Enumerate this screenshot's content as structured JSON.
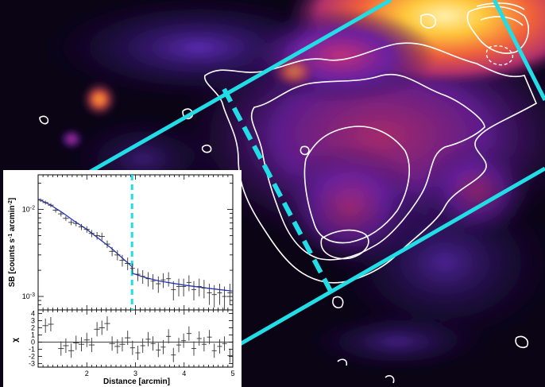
{
  "chart_data": {
    "type": "scatter",
    "background": "X-ray surface brightness image with white contours and cyan sector boundaries",
    "colors": {
      "sector_lines": "#22dde6",
      "contours": "#ffffff",
      "model_line": "#2233cc",
      "data_points": "#333333",
      "inset_background": "#ffffff"
    },
    "inset_top": {
      "type": "scatter",
      "ylabel": "SB [counts s⁻¹ arcmin⁻²]",
      "ylabel_parts": {
        "main": "SB [counts s",
        "exp1": "-1",
        "mid": " arcmin",
        "exp2": "-2",
        "end": "]"
      },
      "yscale": "log",
      "xlim": [
        1.0,
        5.0
      ],
      "ylim": [
        0.0007,
        0.025
      ],
      "ytick_labels": [
        {
          "value": 0.01,
          "base": "10",
          "exp": "-2"
        },
        {
          "value": 0.001,
          "base": "10",
          "exp": "-3"
        }
      ],
      "edge_x": 2.93,
      "points": [
        {
          "x": 1.05,
          "y": 0.0128,
          "xerr": 0.06,
          "yerr": 0.0006
        },
        {
          "x": 1.15,
          "y": 0.012,
          "xerr": 0.06,
          "yerr": 0.0006
        },
        {
          "x": 1.26,
          "y": 0.0112,
          "xerr": 0.06,
          "yerr": 0.0006
        },
        {
          "x": 1.36,
          "y": 0.0098,
          "xerr": 0.06,
          "yerr": 0.0006
        },
        {
          "x": 1.47,
          "y": 0.0089,
          "xerr": 0.06,
          "yerr": 0.0006
        },
        {
          "x": 1.57,
          "y": 0.0079,
          "xerr": 0.06,
          "yerr": 0.0005
        },
        {
          "x": 1.68,
          "y": 0.0071,
          "xerr": 0.06,
          "yerr": 0.0005
        },
        {
          "x": 1.78,
          "y": 0.0069,
          "xerr": 0.06,
          "yerr": 0.0005
        },
        {
          "x": 1.89,
          "y": 0.0063,
          "xerr": 0.06,
          "yerr": 0.0005
        },
        {
          "x": 2.0,
          "y": 0.0059,
          "xerr": 0.06,
          "yerr": 0.0005
        },
        {
          "x": 2.1,
          "y": 0.0053,
          "xerr": 0.06,
          "yerr": 0.0005
        },
        {
          "x": 2.21,
          "y": 0.005,
          "xerr": 0.06,
          "yerr": 0.0005
        },
        {
          "x": 2.31,
          "y": 0.0049,
          "xerr": 0.06,
          "yerr": 0.0005
        },
        {
          "x": 2.42,
          "y": 0.004,
          "xerr": 0.06,
          "yerr": 0.0004
        },
        {
          "x": 2.52,
          "y": 0.0033,
          "xerr": 0.06,
          "yerr": 0.0004
        },
        {
          "x": 2.63,
          "y": 0.003,
          "xerr": 0.06,
          "yerr": 0.0004
        },
        {
          "x": 2.73,
          "y": 0.0026,
          "xerr": 0.06,
          "yerr": 0.0004
        },
        {
          "x": 2.84,
          "y": 0.0024,
          "xerr": 0.06,
          "yerr": 0.0004
        },
        {
          "x": 2.94,
          "y": 0.0021,
          "xerr": 0.05,
          "yerr": 0.0003
        },
        {
          "x": 3.05,
          "y": 0.0018,
          "xerr": 0.05,
          "yerr": 0.0003
        },
        {
          "x": 3.15,
          "y": 0.0017,
          "xerr": 0.05,
          "yerr": 0.0003
        },
        {
          "x": 3.26,
          "y": 0.0016,
          "xerr": 0.05,
          "yerr": 0.0003
        },
        {
          "x": 3.36,
          "y": 0.0015,
          "xerr": 0.05,
          "yerr": 0.0003
        },
        {
          "x": 3.47,
          "y": 0.0014,
          "xerr": 0.05,
          "yerr": 0.0003
        },
        {
          "x": 3.57,
          "y": 0.00155,
          "xerr": 0.05,
          "yerr": 0.0003
        },
        {
          "x": 3.68,
          "y": 0.0016,
          "xerr": 0.05,
          "yerr": 0.0003
        },
        {
          "x": 3.78,
          "y": 0.0012,
          "xerr": 0.05,
          "yerr": 0.0003
        },
        {
          "x": 3.89,
          "y": 0.0013,
          "xerr": 0.05,
          "yerr": 0.0003
        },
        {
          "x": 3.99,
          "y": 0.0013,
          "xerr": 0.05,
          "yerr": 0.0003
        },
        {
          "x": 4.1,
          "y": 0.00145,
          "xerr": 0.05,
          "yerr": 0.0003
        },
        {
          "x": 4.2,
          "y": 0.0012,
          "xerr": 0.05,
          "yerr": 0.0003
        },
        {
          "x": 4.31,
          "y": 0.0013,
          "xerr": 0.05,
          "yerr": 0.0003
        },
        {
          "x": 4.41,
          "y": 0.00125,
          "xerr": 0.05,
          "yerr": 0.0003
        },
        {
          "x": 4.52,
          "y": 0.0011,
          "xerr": 0.05,
          "yerr": 0.0003
        },
        {
          "x": 4.62,
          "y": 0.00105,
          "xerr": 0.05,
          "yerr": 0.0003
        },
        {
          "x": 4.73,
          "y": 0.0011,
          "xerr": 0.05,
          "yerr": 0.0003
        },
        {
          "x": 4.83,
          "y": 0.001,
          "xerr": 0.05,
          "yerr": 0.0003
        },
        {
          "x": 4.94,
          "y": 0.0011,
          "xerr": 0.05,
          "yerr": 0.0003
        }
      ],
      "model": [
        {
          "x": 1.0,
          "y": 0.0132
        },
        {
          "x": 1.25,
          "y": 0.0113
        },
        {
          "x": 1.5,
          "y": 0.0092
        },
        {
          "x": 1.75,
          "y": 0.0073
        },
        {
          "x": 2.0,
          "y": 0.0059
        },
        {
          "x": 2.25,
          "y": 0.0046
        },
        {
          "x": 2.5,
          "y": 0.0036
        },
        {
          "x": 2.75,
          "y": 0.0027
        },
        {
          "x": 2.93,
          "y": 0.0022
        },
        {
          "x": 2.93,
          "y": 0.00185
        },
        {
          "x": 3.2,
          "y": 0.00165
        },
        {
          "x": 3.5,
          "y": 0.0015
        },
        {
          "x": 4.0,
          "y": 0.00135
        },
        {
          "x": 4.5,
          "y": 0.00124
        },
        {
          "x": 5.0,
          "y": 0.00115
        }
      ]
    },
    "inset_bottom": {
      "type": "scatter",
      "ylabel": "χ",
      "xlabel": "Distance [arcmin]",
      "xlim": [
        1.0,
        5.0
      ],
      "ylim": [
        -3.5,
        4.5
      ],
      "ytick_labels": [
        "4",
        "3",
        "2",
        "1",
        "0",
        "-1",
        "-2",
        "-3"
      ],
      "ytick_values": [
        4,
        3,
        2,
        1,
        0,
        -1,
        -2,
        -3
      ],
      "xtick_labels": [
        "2",
        "3",
        "4",
        "5"
      ],
      "xtick_values": [
        2,
        3,
        4,
        5
      ],
      "points": [
        {
          "x": 1.15,
          "y": 2.3,
          "xerr": 0.06,
          "yerr": 1
        },
        {
          "x": 1.26,
          "y": 2.5,
          "xerr": 0.06,
          "yerr": 1
        },
        {
          "x": 1.47,
          "y": -0.9,
          "xerr": 0.06,
          "yerr": 1
        },
        {
          "x": 1.57,
          "y": -0.5,
          "xerr": 0.06,
          "yerr": 1
        },
        {
          "x": 1.68,
          "y": -1.2,
          "xerr": 0.06,
          "yerr": 1
        },
        {
          "x": 1.78,
          "y": -0.1,
          "xerr": 0.06,
          "yerr": 1
        },
        {
          "x": 1.89,
          "y": -0.3,
          "xerr": 0.06,
          "yerr": 1
        },
        {
          "x": 2.0,
          "y": 0.3,
          "xerr": 0.06,
          "yerr": 1
        },
        {
          "x": 2.1,
          "y": -0.4,
          "xerr": 0.06,
          "yerr": 1
        },
        {
          "x": 2.21,
          "y": 1.8,
          "xerr": 0.06,
          "yerr": 1
        },
        {
          "x": 2.31,
          "y": 2.0,
          "xerr": 0.06,
          "yerr": 1
        },
        {
          "x": 2.42,
          "y": 2.6,
          "xerr": 0.06,
          "yerr": 1
        },
        {
          "x": 2.52,
          "y": -0.2,
          "xerr": 0.06,
          "yerr": 1
        },
        {
          "x": 2.63,
          "y": -0.6,
          "xerr": 0.06,
          "yerr": 1
        },
        {
          "x": 2.73,
          "y": -0.3,
          "xerr": 0.06,
          "yerr": 1
        },
        {
          "x": 2.84,
          "y": 0.6,
          "xerr": 0.06,
          "yerr": 1
        },
        {
          "x": 2.94,
          "y": -0.8,
          "xerr": 0.05,
          "yerr": 1
        },
        {
          "x": 3.05,
          "y": -1.5,
          "xerr": 0.05,
          "yerr": 1
        },
        {
          "x": 3.15,
          "y": -0.5,
          "xerr": 0.05,
          "yerr": 1
        },
        {
          "x": 3.26,
          "y": 0.4,
          "xerr": 0.05,
          "yerr": 1
        },
        {
          "x": 3.36,
          "y": -0.2,
          "xerr": 0.05,
          "yerr": 1
        },
        {
          "x": 3.47,
          "y": -1.1,
          "xerr": 0.05,
          "yerr": 1
        },
        {
          "x": 3.57,
          "y": -0.7,
          "xerr": 0.05,
          "yerr": 1
        },
        {
          "x": 3.68,
          "y": 0.8,
          "xerr": 0.05,
          "yerr": 1
        },
        {
          "x": 3.78,
          "y": -1.8,
          "xerr": 0.05,
          "yerr": 1
        },
        {
          "x": 3.89,
          "y": -0.4,
          "xerr": 0.05,
          "yerr": 1
        },
        {
          "x": 3.99,
          "y": 0.2,
          "xerr": 0.05,
          "yerr": 1
        },
        {
          "x": 4.1,
          "y": 1.2,
          "xerr": 0.05,
          "yerr": 1
        },
        {
          "x": 4.2,
          "y": -0.9,
          "xerr": 0.05,
          "yerr": 1
        },
        {
          "x": 4.31,
          "y": 0.5,
          "xerr": 0.05,
          "yerr": 1
        },
        {
          "x": 4.41,
          "y": -0.3,
          "xerr": 0.05,
          "yerr": 1
        },
        {
          "x": 4.52,
          "y": 0.7,
          "xerr": 0.05,
          "yerr": 1
        },
        {
          "x": 4.62,
          "y": -1.2,
          "xerr": 0.05,
          "yerr": 1
        },
        {
          "x": 4.73,
          "y": -0.6,
          "xerr": 0.05,
          "yerr": 1
        },
        {
          "x": 4.83,
          "y": -0.2,
          "xerr": 0.05,
          "yerr": 1
        },
        {
          "x": 4.94,
          "y": -1.9,
          "xerr": 0.05,
          "yerr": 1
        }
      ]
    }
  }
}
